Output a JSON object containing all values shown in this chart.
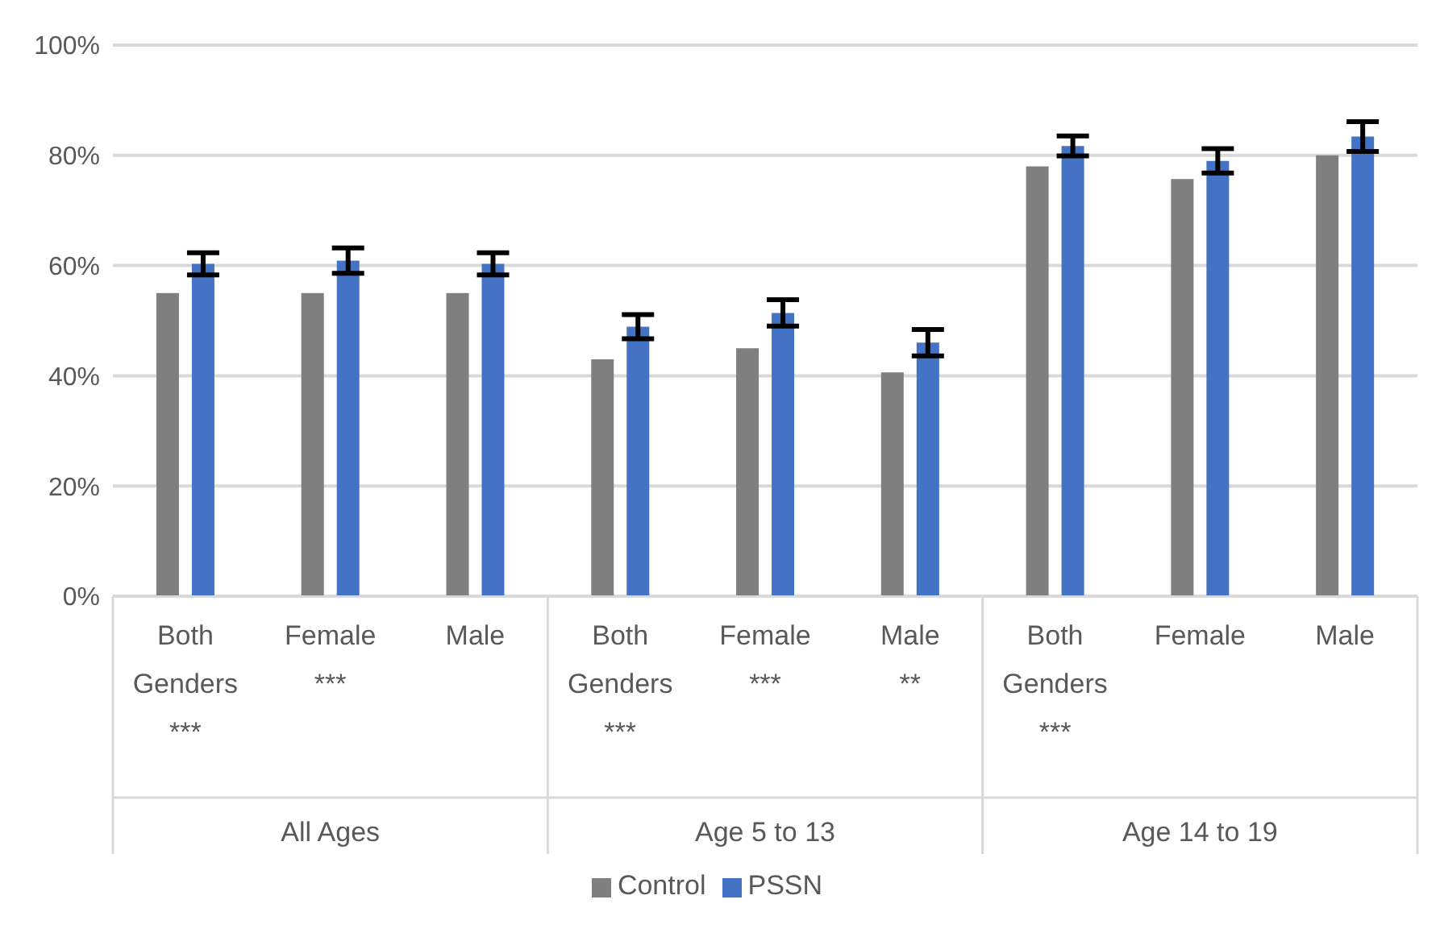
{
  "chart_data": {
    "type": "bar",
    "categories": [
      "Both Genders ***",
      "Female ***",
      "Male",
      "Both Genders ***",
      "Female ***",
      "Male **",
      "Both Genders ***",
      "Female",
      "Male"
    ],
    "series": [
      {
        "name": "Control",
        "color": "#7f7f7f",
        "values": [
          55,
          55,
          55,
          43,
          45,
          40.6,
          78,
          75.7,
          80
        ]
      },
      {
        "name": "PSSN",
        "color": "#4472c4",
        "values": [
          60.3,
          60.9,
          60.3,
          48.9,
          51.4,
          46,
          81.7,
          79,
          83.4
        ],
        "errors": [
          2,
          2.3,
          2,
          2.2,
          2.4,
          2.4,
          1.8,
          2.2,
          2.7
        ]
      }
    ],
    "ylim": [
      0,
      100
    ],
    "yticks": [
      {
        "value": 0,
        "label": "0%"
      },
      {
        "value": 20,
        "label": "20%"
      },
      {
        "value": 40,
        "label": "40%"
      },
      {
        "value": 60,
        "label": "60%"
      },
      {
        "value": 80,
        "label": "80%"
      },
      {
        "value": 100,
        "label": "100%"
      }
    ],
    "annotations": [
      "All Ages",
      "Age 5 to 13",
      "Age 14 to 19"
    ],
    "grid": "y",
    "legend": "bottom"
  }
}
